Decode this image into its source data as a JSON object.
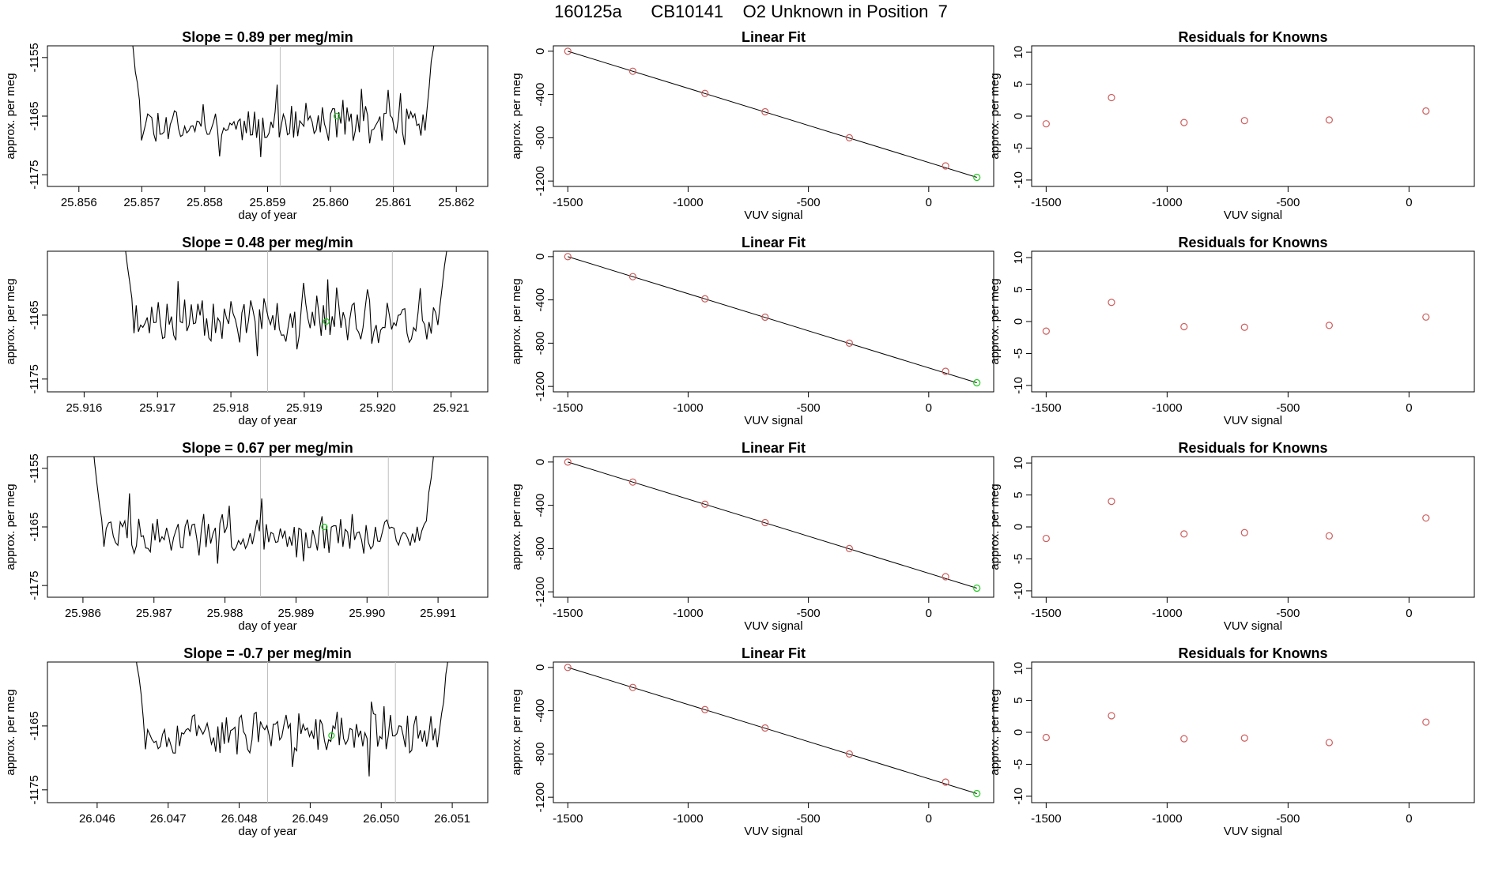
{
  "header": {
    "title": "160125a      CB10141    O2 Unknown in Position  7"
  },
  "colors": {
    "trace": "#000000",
    "known_points": "#cd5c5c",
    "unknown_point": "#22cc22",
    "grid_lines": "#bfbfbf"
  },
  "chart_data": [
    {
      "row": 1,
      "type": "line",
      "title": "Slope =  0.89  per meg/min",
      "xlabel": "day of year",
      "ylabel": "approx. per meg",
      "xlim": [
        25.8555,
        25.8625
      ],
      "ylim": [
        -1177,
        -1153
      ],
      "xticks": [
        25.856,
        25.857,
        25.858,
        25.859,
        25.86,
        25.861,
        25.862
      ],
      "xtick_labels": [
        "25.856",
        "25.857",
        "25.858",
        "25.859",
        "25.860",
        "25.861",
        "25.862"
      ],
      "yticks": [
        -1155,
        -1165,
        -1175
      ],
      "ytick_labels": [
        "-1155",
        "-1165",
        "-1175"
      ],
      "trace": {
        "start": 25.8568,
        "end": 25.8617,
        "mean": -1166.2,
        "amp": 2.8,
        "seed": 11
      },
      "vlines": [
        25.8592,
        25.861
      ],
      "unknown_point": {
        "x": 25.8601,
        "y": -1165
      }
    },
    {
      "row": 1,
      "type": "scatter",
      "title": "Linear Fit",
      "xlabel": "VUV signal",
      "ylabel": "approx. per meg",
      "xlim": [
        -1560,
        270
      ],
      "ylim": [
        -1250,
        50
      ],
      "xticks": [
        -1500,
        -1000,
        -500,
        0
      ],
      "xtick_labels": [
        "-1500",
        "-1000",
        "-500",
        "0"
      ],
      "yticks": [
        0,
        -400,
        -800,
        -1200
      ],
      "ytick_labels": [
        "0",
        "-400",
        "-800",
        "-1200"
      ],
      "fit_line": {
        "x": [
          -1500,
          200
        ],
        "y": [
          0,
          -1166
        ]
      },
      "known_points": {
        "x": [
          -1500,
          -1230,
          -930,
          -680,
          -330,
          70
        ],
        "y": [
          0,
          -185,
          -390,
          -560,
          -800,
          -1060
        ]
      },
      "unknown_point": {
        "x": 200,
        "y": -1166
      }
    },
    {
      "row": 1,
      "type": "scatter",
      "title": "Residuals for Knowns",
      "xlabel": "VUV signal",
      "ylabel": "approx. per meg",
      "xlim": [
        -1560,
        270
      ],
      "ylim": [
        -11,
        11
      ],
      "xticks": [
        -1500,
        -1000,
        -500,
        0
      ],
      "xtick_labels": [
        "-1500",
        "-1000",
        "-500",
        "0"
      ],
      "yticks": [
        10,
        5,
        0,
        -5,
        -10
      ],
      "ytick_labels": [
        "10",
        "5",
        "0",
        "-5",
        "-10"
      ],
      "points": {
        "x": [
          -1500,
          -1230,
          -930,
          -680,
          -330,
          70
        ],
        "y": [
          -1.2,
          2.9,
          -1.0,
          -0.7,
          -0.6,
          0.8
        ]
      }
    },
    {
      "row": 2,
      "type": "line",
      "title": "Slope =  0.48  per meg/min",
      "xlabel": "day of year",
      "ylabel": "approx. per meg",
      "xlim": [
        25.9155,
        25.9215
      ],
      "ylim": [
        -1177,
        -1155
      ],
      "xticks": [
        25.916,
        25.917,
        25.918,
        25.919,
        25.92,
        25.921
      ],
      "xtick_labels": [
        "25.916",
        "25.917",
        "25.918",
        "25.919",
        "25.920",
        "25.921"
      ],
      "yticks": [
        -1165,
        -1175
      ],
      "ytick_labels": [
        "-1165",
        "-1175"
      ],
      "trace": {
        "start": 25.9165,
        "end": 25.921,
        "mean": -1165.8,
        "amp": 2.9,
        "seed": 23
      },
      "vlines": [
        25.9185,
        25.9202
      ],
      "unknown_point": {
        "x": 25.9193,
        "y": -1166
      }
    },
    {
      "row": 2,
      "type": "scatter",
      "title": "Linear Fit",
      "xlabel": "VUV signal",
      "ylabel": "approx. per meg",
      "xlim": [
        -1560,
        270
      ],
      "ylim": [
        -1250,
        50
      ],
      "xticks": [
        -1500,
        -1000,
        -500,
        0
      ],
      "xtick_labels": [
        "-1500",
        "-1000",
        "-500",
        "0"
      ],
      "yticks": [
        0,
        -400,
        -800,
        -1200
      ],
      "ytick_labels": [
        "0",
        "-400",
        "-800",
        "-1200"
      ],
      "fit_line": {
        "x": [
          -1500,
          200
        ],
        "y": [
          0,
          -1166
        ]
      },
      "known_points": {
        "x": [
          -1500,
          -1230,
          -930,
          -680,
          -330,
          70
        ],
        "y": [
          0,
          -185,
          -390,
          -560,
          -800,
          -1060
        ]
      },
      "unknown_point": {
        "x": 200,
        "y": -1166
      }
    },
    {
      "row": 2,
      "type": "scatter",
      "title": "Residuals for Knowns",
      "xlabel": "VUV signal",
      "ylabel": "approx. per meg",
      "xlim": [
        -1560,
        270
      ],
      "ylim": [
        -11,
        11
      ],
      "xticks": [
        -1500,
        -1000,
        -500,
        0
      ],
      "xtick_labels": [
        "-1500",
        "-1000",
        "-500",
        "0"
      ],
      "yticks": [
        10,
        5,
        0,
        -5,
        -10
      ],
      "ytick_labels": [
        "10",
        "5",
        "0",
        "-5",
        "-10"
      ],
      "points": {
        "x": [
          -1500,
          -1230,
          -930,
          -680,
          -330,
          70
        ],
        "y": [
          -1.5,
          3.0,
          -0.8,
          -0.9,
          -0.6,
          0.7
        ]
      }
    },
    {
      "row": 3,
      "type": "line",
      "title": "Slope =  0.67  per meg/min",
      "xlabel": "day of year",
      "ylabel": "approx. per meg",
      "xlim": [
        25.9855,
        25.9917
      ],
      "ylim": [
        -1177,
        -1153
      ],
      "xticks": [
        25.986,
        25.987,
        25.988,
        25.989,
        25.99,
        25.991
      ],
      "xtick_labels": [
        "25.986",
        "25.987",
        "25.988",
        "25.989",
        "25.990",
        "25.991"
      ],
      "yticks": [
        -1155,
        -1165,
        -1175
      ],
      "ytick_labels": [
        "-1155",
        "-1165",
        "-1175"
      ],
      "trace": {
        "start": 25.9861,
        "end": 25.991,
        "mean": -1166.5,
        "amp": 3.0,
        "seed": 37
      },
      "vlines": [
        25.9885,
        25.9903
      ],
      "unknown_point": {
        "x": 25.9894,
        "y": -1165
      }
    },
    {
      "row": 3,
      "type": "scatter",
      "title": "Linear Fit",
      "xlabel": "VUV signal",
      "ylabel": "approx. per meg",
      "xlim": [
        -1560,
        270
      ],
      "ylim": [
        -1250,
        50
      ],
      "xticks": [
        -1500,
        -1000,
        -500,
        0
      ],
      "xtick_labels": [
        "-1500",
        "-1000",
        "-500",
        "0"
      ],
      "yticks": [
        0,
        -400,
        -800,
        -1200
      ],
      "ytick_labels": [
        "0",
        "-400",
        "-800",
        "-1200"
      ],
      "fit_line": {
        "x": [
          -1500,
          200
        ],
        "y": [
          0,
          -1166
        ]
      },
      "known_points": {
        "x": [
          -1500,
          -1230,
          -930,
          -680,
          -330,
          70
        ],
        "y": [
          0,
          -185,
          -390,
          -560,
          -800,
          -1060
        ]
      },
      "unknown_point": {
        "x": 200,
        "y": -1166
      }
    },
    {
      "row": 3,
      "type": "scatter",
      "title": "Residuals for Knowns",
      "xlabel": "VUV signal",
      "ylabel": "approx. per meg",
      "xlim": [
        -1560,
        270
      ],
      "ylim": [
        -11,
        11
      ],
      "xticks": [
        -1500,
        -1000,
        -500,
        0
      ],
      "xtick_labels": [
        "-1500",
        "-1000",
        "-500",
        "0"
      ],
      "yticks": [
        10,
        5,
        0,
        -5,
        -10
      ],
      "ytick_labels": [
        "10",
        "5",
        "0",
        "-5",
        "-10"
      ],
      "points": {
        "x": [
          -1500,
          -1230,
          -930,
          -680,
          -330,
          70
        ],
        "y": [
          -1.8,
          4.0,
          -1.1,
          -0.9,
          -1.4,
          1.4
        ]
      }
    },
    {
      "row": 4,
      "type": "line",
      "title": "Slope =  -0.7  per meg/min",
      "xlabel": "day of year",
      "ylabel": "approx. per meg",
      "xlim": [
        26.0453,
        26.0515
      ],
      "ylim": [
        -1177,
        -1155
      ],
      "xticks": [
        26.046,
        26.047,
        26.048,
        26.049,
        26.05,
        26.051
      ],
      "xtick_labels": [
        "26.046",
        "26.047",
        "26.048",
        "26.049",
        "26.050",
        "26.051"
      ],
      "yticks": [
        -1165,
        -1175
      ],
      "ytick_labels": [
        "-1165",
        "-1175"
      ],
      "trace": {
        "start": 26.0465,
        "end": 26.051,
        "mean": -1166.3,
        "amp": 2.8,
        "seed": 53
      },
      "vlines": [
        26.0484,
        26.0502
      ],
      "unknown_point": {
        "x": 26.0493,
        "y": -1166.5
      }
    },
    {
      "row": 4,
      "type": "scatter",
      "title": "Linear Fit",
      "xlabel": "VUV signal",
      "ylabel": "approx. per meg",
      "xlim": [
        -1560,
        270
      ],
      "ylim": [
        -1250,
        50
      ],
      "xticks": [
        -1500,
        -1000,
        -500,
        0
      ],
      "xtick_labels": [
        "-1500",
        "-1000",
        "-500",
        "0"
      ],
      "yticks": [
        0,
        -400,
        -800,
        -1200
      ],
      "ytick_labels": [
        "0",
        "-400",
        "-800",
        "-1200"
      ],
      "fit_line": {
        "x": [
          -1500,
          200
        ],
        "y": [
          0,
          -1166
        ]
      },
      "known_points": {
        "x": [
          -1500,
          -1230,
          -930,
          -680,
          -330,
          70
        ],
        "y": [
          0,
          -185,
          -390,
          -560,
          -800,
          -1060
        ]
      },
      "unknown_point": {
        "x": 200,
        "y": -1166
      }
    },
    {
      "row": 4,
      "type": "scatter",
      "title": "Residuals for Knowns",
      "xlabel": "VUV signal",
      "ylabel": "approx. per meg",
      "xlim": [
        -1560,
        270
      ],
      "ylim": [
        -11,
        11
      ],
      "xticks": [
        -1500,
        -1000,
        -500,
        0
      ],
      "xtick_labels": [
        "-1500",
        "-1000",
        "-500",
        "0"
      ],
      "yticks": [
        10,
        5,
        0,
        -5,
        -10
      ],
      "ytick_labels": [
        "10",
        "5",
        "0",
        "-5",
        "-10"
      ],
      "points": {
        "x": [
          -1500,
          -1230,
          -930,
          -680,
          -330,
          70
        ],
        "y": [
          -0.8,
          2.6,
          -1.0,
          -0.9,
          -1.6,
          1.6
        ]
      }
    }
  ]
}
